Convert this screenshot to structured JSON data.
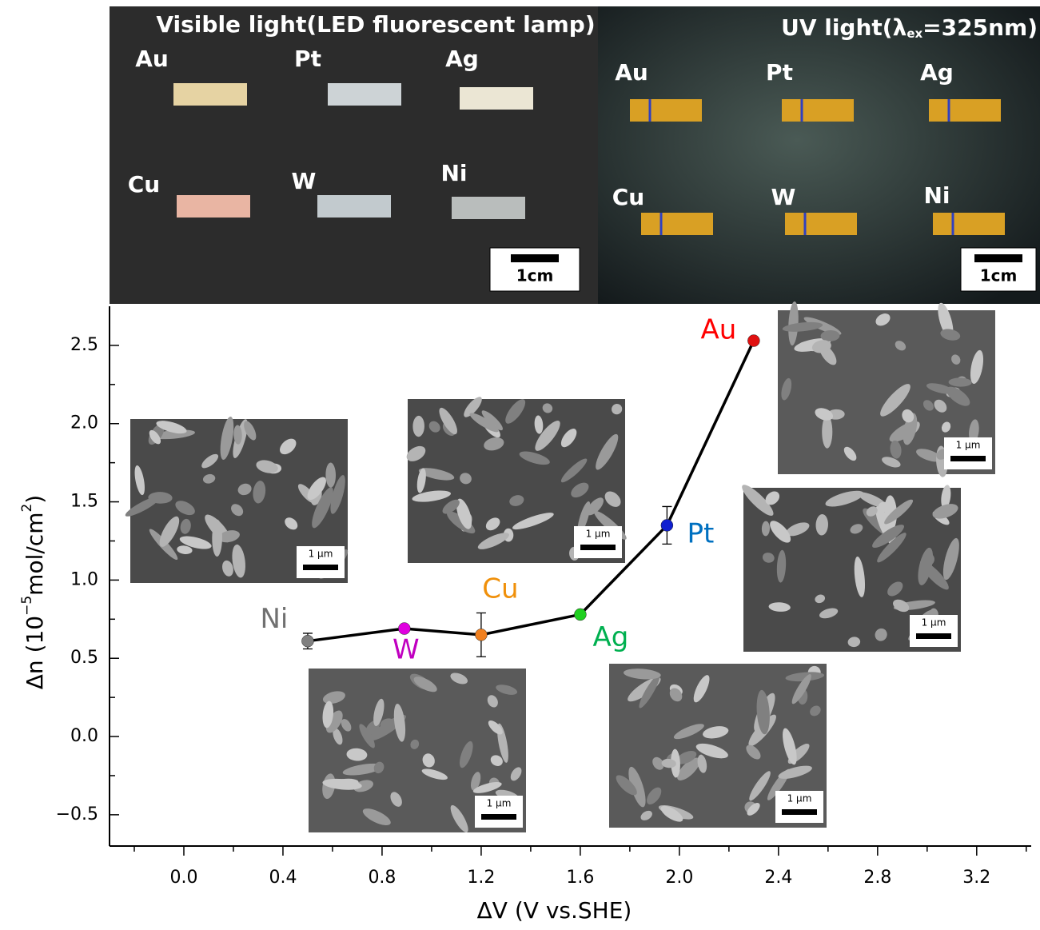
{
  "photos": [
    {
      "title": "Visible light(LED fluorescent lamp)",
      "labels": [
        "Au",
        "Pt",
        "Ag",
        "Cu",
        "W",
        "Ni"
      ],
      "scale_bar": "1cm"
    },
    {
      "title_parts": [
        "UV light(λ",
        "ex",
        "=325nm)"
      ],
      "labels": [
        "Au",
        "Pt",
        "Ag",
        "Cu",
        "W",
        "Ni"
      ],
      "scale_bar": "1cm"
    }
  ],
  "chart_data": {
    "type": "line",
    "xlabel": "ΔV (V vs.SHE)",
    "ylabel_parts": [
      "Δn (10",
      "−5",
      "mol/cm",
      "2",
      ")"
    ],
    "xlim": [
      -0.3,
      3.42
    ],
    "ylim": [
      -0.7,
      2.75
    ],
    "xticks": [
      {
        "value": 0,
        "label": "0.0"
      },
      0.4,
      0.8,
      1.2,
      1.6,
      {
        "value": 2,
        "label": "2.0"
      },
      2.4,
      2.8,
      3.2
    ],
    "yticks": [
      {
        "value": -0.5,
        "label": "−0.5"
      },
      {
        "value": 0,
        "label": "0.0"
      },
      0.5,
      {
        "value": 1,
        "label": "1.0"
      },
      1.5,
      {
        "value": 2,
        "label": "2.0"
      },
      2.5
    ],
    "xminorticks": [
      -0.2,
      0.2,
      0.6,
      1.0,
      1.4,
      1.8,
      2.2,
      2.6,
      3.0,
      3.4
    ],
    "yminorticks": [
      -0.25,
      0.25,
      0.75,
      1.25,
      1.75,
      2.25
    ],
    "series": [
      {
        "color": "#000000",
        "x": [
          0.5,
          0.89,
          1.2,
          1.6,
          1.95,
          2.3
        ],
        "values": [
          0.61,
          0.69,
          0.65,
          0.78,
          1.35,
          2.53
        ],
        "errors": [
          0.05,
          null,
          0.14,
          null,
          0.12,
          null
        ],
        "labels": [
          "Ni",
          "W",
          "Cu",
          "Ag",
          "Pt",
          "Au"
        ],
        "point_colors": [
          "#808080",
          "#e000e0",
          "#f08020",
          "#20d020",
          "#1020d0",
          "#e01010"
        ],
        "label_colors": [
          "#707070",
          "#c000c0",
          "#f0900a",
          "#00b050",
          "#0070c0",
          "#ff0000"
        ]
      }
    ],
    "insets": [
      {
        "scale": "1 μm"
      },
      {
        "scale": "1 μm"
      },
      {
        "scale": "1 μm"
      },
      {
        "scale": "1 μm"
      },
      {
        "scale": "1 μm"
      },
      {
        "scale": "1 μm"
      }
    ]
  }
}
